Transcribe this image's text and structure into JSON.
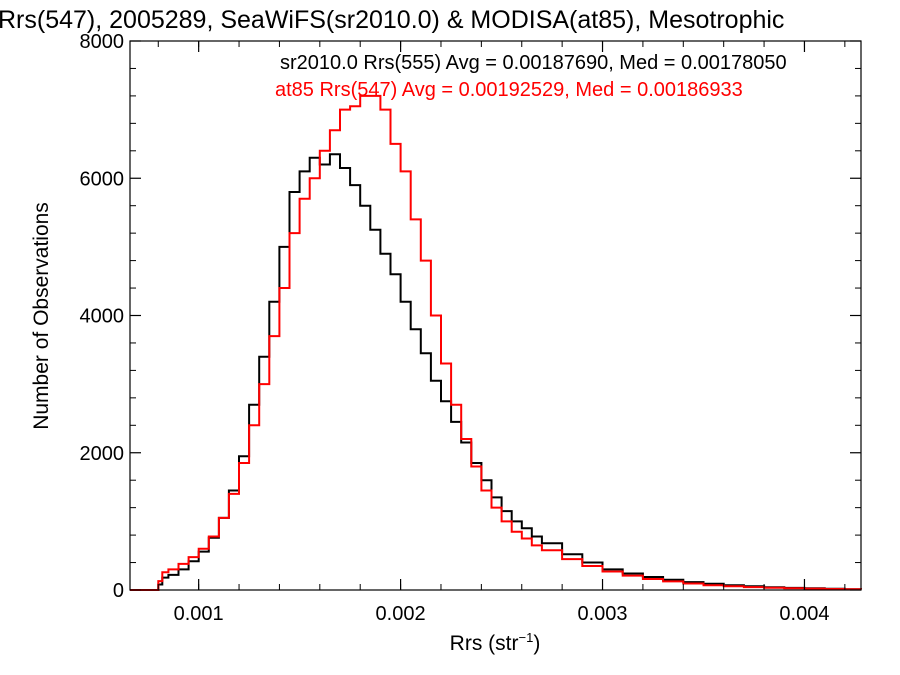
{
  "chart_data": {
    "type": "line",
    "title": "Rrs(547), 2005289, SeaWiFS(sr2010.0) & MODISA(at85), Mesotrophic",
    "xlabel_main": "Rrs (str",
    "xlabel_sup": "−1",
    "xlabel_end": ")",
    "ylabel": "Number of Observations",
    "xlim": [
      0.00066,
      0.00428
    ],
    "ylim": [
      0,
      8000
    ],
    "x_ticks": [
      0.001,
      0.002,
      0.003,
      0.004
    ],
    "x_tick_labels": [
      "0.001",
      "0.002",
      "0.003",
      "0.004"
    ],
    "y_ticks": [
      0,
      2000,
      4000,
      6000,
      8000
    ],
    "y_tick_labels": [
      "0",
      "2000",
      "4000",
      "6000",
      "8000"
    ],
    "grid": false,
    "annotations": [
      "sr2010.0 Rrs(555) Avg = 0.00187690, Med = 0.00178050",
      "at85 Rrs(547) Avg = 0.00192529, Med = 0.00186933"
    ],
    "series": [
      {
        "color": "#000000",
        "x": [
          0.00066,
          0.00078,
          0.0008,
          0.00082,
          0.00085,
          0.0009,
          0.00095,
          0.001,
          0.00105,
          0.0011,
          0.00115,
          0.0012,
          0.00125,
          0.0013,
          0.00135,
          0.0014,
          0.00145,
          0.0015,
          0.00155,
          0.0016,
          0.00165,
          0.0017,
          0.00175,
          0.0018,
          0.00185,
          0.0019,
          0.00195,
          0.002,
          0.00205,
          0.0021,
          0.00215,
          0.0022,
          0.00225,
          0.0023,
          0.00235,
          0.0024,
          0.00245,
          0.0025,
          0.00255,
          0.0026,
          0.00265,
          0.0027,
          0.0028,
          0.0029,
          0.003,
          0.0031,
          0.0032,
          0.0033,
          0.0034,
          0.0035,
          0.0036,
          0.0037,
          0.0038,
          0.0039,
          0.004,
          0.0041,
          0.0042,
          0.00428
        ],
        "y": [
          0,
          0,
          80,
          180,
          220,
          300,
          420,
          560,
          760,
          1050,
          1450,
          1950,
          2700,
          3400,
          4200,
          5000,
          5800,
          6100,
          6300,
          6200,
          6350,
          6150,
          5900,
          5600,
          5250,
          4900,
          4600,
          4200,
          3800,
          3450,
          3050,
          2750,
          2450,
          2150,
          1850,
          1600,
          1350,
          1150,
          1000,
          900,
          780,
          680,
          520,
          400,
          300,
          240,
          190,
          150,
          115,
          90,
          70,
          55,
          40,
          30,
          25,
          18,
          12,
          10
        ]
      },
      {
        "color": "#ff0000",
        "x": [
          0.00066,
          0.00078,
          0.0008,
          0.00082,
          0.00085,
          0.0009,
          0.00095,
          0.001,
          0.00105,
          0.0011,
          0.00115,
          0.0012,
          0.00125,
          0.0013,
          0.00135,
          0.0014,
          0.00145,
          0.0015,
          0.00155,
          0.0016,
          0.00165,
          0.0017,
          0.00175,
          0.0018,
          0.00185,
          0.0019,
          0.00195,
          0.002,
          0.00205,
          0.0021,
          0.00215,
          0.0022,
          0.00225,
          0.0023,
          0.00235,
          0.0024,
          0.00245,
          0.0025,
          0.00255,
          0.0026,
          0.00265,
          0.0027,
          0.0028,
          0.0029,
          0.003,
          0.0031,
          0.0032,
          0.0033,
          0.0034,
          0.0035,
          0.0036,
          0.0037,
          0.0038,
          0.0039,
          0.004,
          0.0041,
          0.0042,
          0.00428
        ],
        "y": [
          0,
          0,
          130,
          260,
          300,
          380,
          480,
          600,
          780,
          1050,
          1400,
          1850,
          2400,
          3000,
          3700,
          4400,
          5200,
          5700,
          6000,
          6400,
          6700,
          7000,
          7050,
          7200,
          7200,
          7000,
          6500,
          6100,
          5400,
          4800,
          4000,
          3300,
          2700,
          2200,
          1800,
          1450,
          1200,
          1000,
          850,
          750,
          650,
          580,
          450,
          350,
          270,
          210,
          160,
          125,
          95,
          70,
          55,
          42,
          32,
          25,
          20,
          15,
          10,
          8
        ]
      }
    ]
  }
}
